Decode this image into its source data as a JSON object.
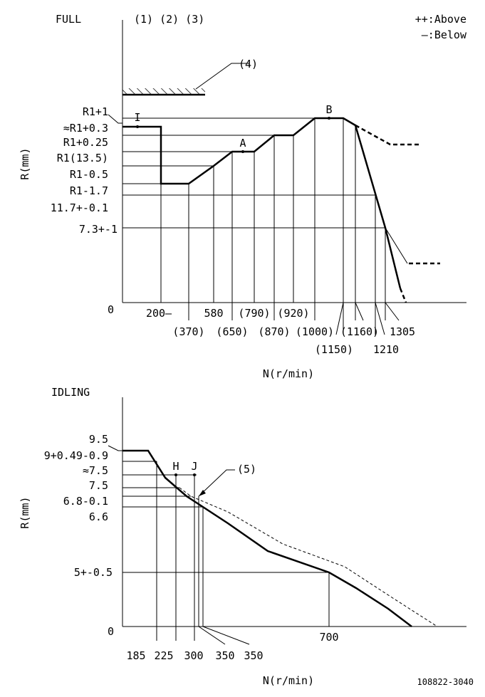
{
  "full": {
    "title": "FULL",
    "conditions": "(1) (2) (3)",
    "legend_above": "++:Above",
    "legend_below": "—:Below",
    "callout4": "(4)",
    "y_axis_label": "R(mm)",
    "x_axis_label": "N(r/min)",
    "origin": "0",
    "y_labels": [
      "R1+1",
      "≈R1+0.3",
      "R1+0.25",
      "R1(13.5)",
      "R1-0.5",
      "R1-1.7",
      "11.7+-0.1",
      "7.3+-1"
    ],
    "x_labels_top": [
      "200—",
      "580",
      "(790)",
      "(920)"
    ],
    "x_labels_mid": [
      "(370)",
      "(650)",
      "(870)",
      "(1000)",
      "(1160)",
      "1305"
    ],
    "x_labels_low": [
      "(1150)",
      "1210"
    ],
    "point_I": "I",
    "point_A": "A",
    "point_B": "B"
  },
  "idling": {
    "title": "IDLING",
    "callout5": "(5)",
    "y_axis_label": "R(mm)",
    "x_axis_label": "N(r/min)",
    "origin": "0",
    "y_labels": [
      "9.5",
      "9+0.49-0.9",
      "≈7.5",
      "7.5",
      "6.8-0.1",
      "6.6",
      "5+-0.5"
    ],
    "x_labels": [
      "185",
      "225",
      "300",
      "350",
      "350"
    ],
    "x_label_700": "700",
    "point_H": "H",
    "point_J": "J"
  },
  "drawing_number": "108822-3040"
}
